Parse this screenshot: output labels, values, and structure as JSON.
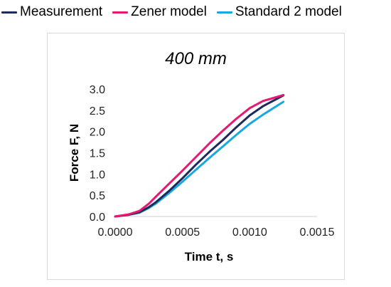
{
  "legend": {
    "items": [
      {
        "label": "Measurement",
        "color": "#1f2a5c"
      },
      {
        "label": "Zener model",
        "color": "#e8186e"
      },
      {
        "label": "Standard 2 model",
        "color": "#18a8e0"
      }
    ]
  },
  "chart_data": {
    "type": "line",
    "title": "400 mm",
    "xlabel": "Time t, s",
    "ylabel": "Force F, N",
    "xlim": [
      0,
      0.0015
    ],
    "ylim": [
      0,
      3.0
    ],
    "xticks": [
      "0.0000",
      "0.0005",
      "0.0010",
      "0.0015"
    ],
    "yticks": [
      "0.0",
      "0.5",
      "1.0",
      "1.5",
      "2.0",
      "2.5",
      "3.0"
    ],
    "grid": false,
    "legend_position": "top",
    "series": [
      {
        "name": "Measurement",
        "color": "#1f2a5c",
        "x": [
          0,
          0.0001,
          0.00018,
          0.00025,
          0.0003,
          0.0004,
          0.0005,
          0.0006,
          0.0007,
          0.0008,
          0.0009,
          0.001,
          0.0011,
          0.00125
        ],
        "y": [
          0.0,
          0.04,
          0.1,
          0.22,
          0.33,
          0.6,
          0.9,
          1.22,
          1.52,
          1.8,
          2.1,
          2.38,
          2.6,
          2.85
        ]
      },
      {
        "name": "Zener model",
        "color": "#e8186e",
        "x": [
          0,
          0.0001,
          0.00018,
          0.00025,
          0.0003,
          0.0004,
          0.0005,
          0.0006,
          0.0007,
          0.0008,
          0.0009,
          0.001,
          0.0011,
          0.00125
        ],
        "y": [
          0.0,
          0.05,
          0.13,
          0.3,
          0.46,
          0.77,
          1.08,
          1.4,
          1.72,
          2.02,
          2.3,
          2.55,
          2.72,
          2.86
        ]
      },
      {
        "name": "Standard 2 model",
        "color": "#18a8e0",
        "x": [
          0,
          0.0001,
          0.00018,
          0.00025,
          0.0003,
          0.0004,
          0.0005,
          0.0006,
          0.0007,
          0.0008,
          0.0009,
          0.001,
          0.0011,
          0.00125
        ],
        "y": [
          0.0,
          0.04,
          0.09,
          0.2,
          0.3,
          0.55,
          0.82,
          1.1,
          1.38,
          1.65,
          1.92,
          2.18,
          2.4,
          2.7
        ]
      }
    ]
  }
}
